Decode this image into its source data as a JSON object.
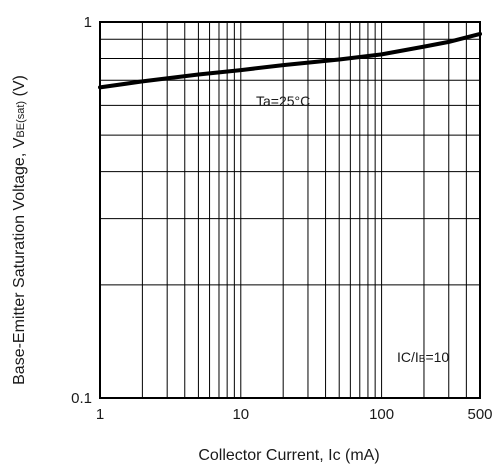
{
  "chart_data": {
    "type": "line",
    "xlabel": "Collector Current, Ic (mA)",
    "ylabel_main": "Base-Emitter Saturation Voltage, V",
    "ylabel_sub": "BE(sat)",
    "ylabel_unit": " (V)",
    "x_scale": "log",
    "y_scale": "log",
    "xlim": [
      1,
      500
    ],
    "ylim": [
      0.1,
      1
    ],
    "x_ticks": [
      1,
      10,
      100,
      500
    ],
    "x_tick_labels": [
      "1",
      "10",
      "100",
      "500"
    ],
    "y_ticks": [
      0.1,
      1
    ],
    "y_tick_labels": [
      "0.1",
      "1"
    ],
    "grid": true,
    "series": [
      {
        "x": [
          1,
          2,
          5,
          10,
          20,
          50,
          100,
          200,
          300,
          500
        ],
        "y": [
          0.67,
          0.695,
          0.725,
          0.745,
          0.768,
          0.795,
          0.82,
          0.86,
          0.885,
          0.93
        ]
      }
    ],
    "annotations": {
      "temp": "Ta=25°C",
      "ratio_a": "IC/I",
      "ratio_b": "B",
      "ratio_c": "=10"
    }
  }
}
